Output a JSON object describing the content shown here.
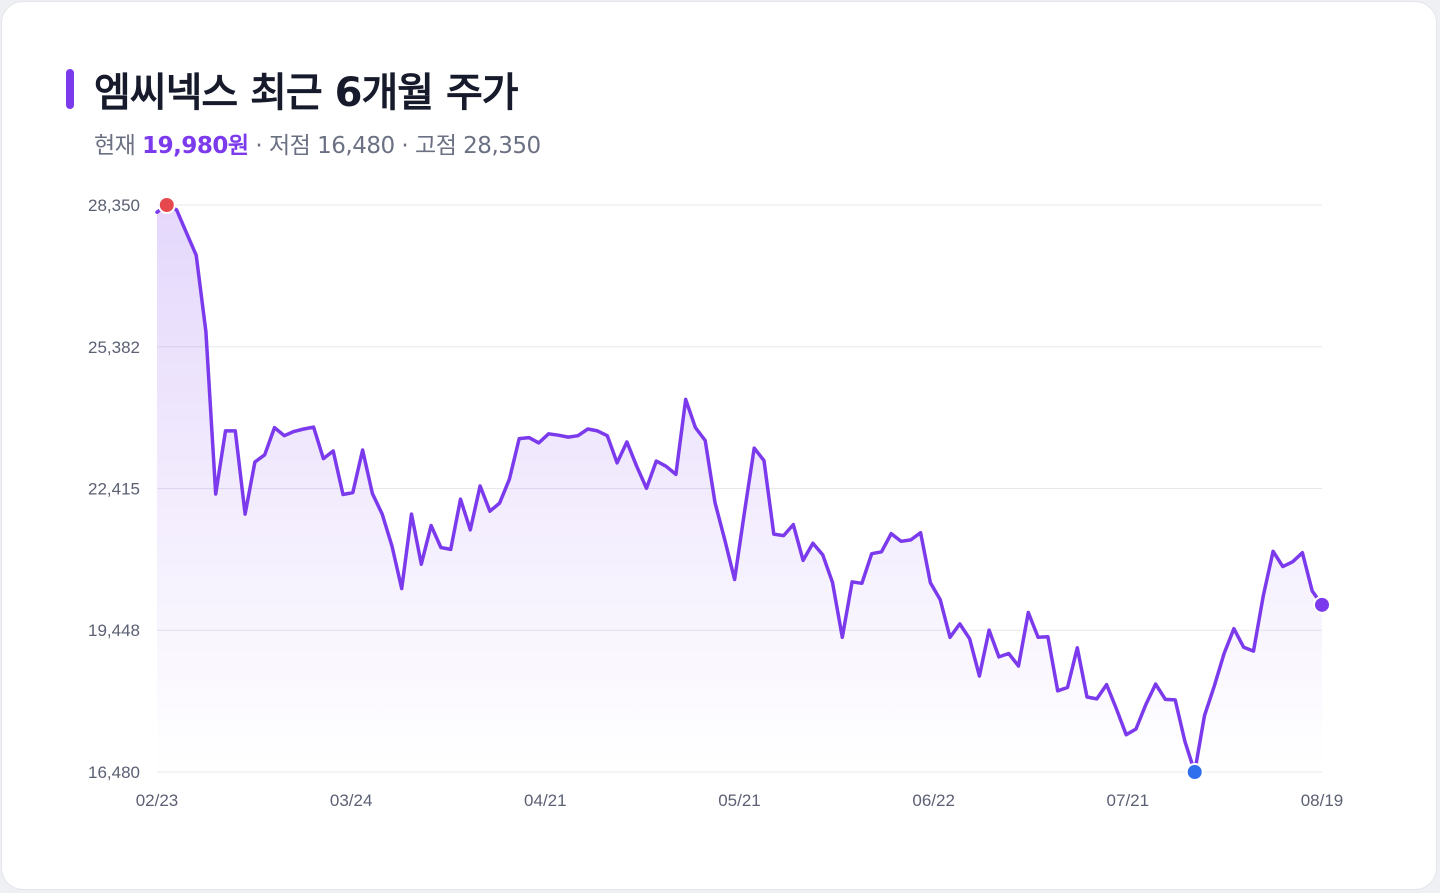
{
  "colors": {
    "line": "#7c3aed",
    "high_dot": "#e5484d",
    "low_dot": "#2f6fed",
    "last_dot": "#7c3aed",
    "grid": "#e7e8ee",
    "title_bar": "#7c3aed"
  },
  "header": {
    "title": "엠씨넥스 최근 6개월 주가",
    "current_label": "현재",
    "current_value": "19,980원",
    "low_text": "· 저점 16,480",
    "high_text": "· 고점 28,350"
  },
  "chart_data": {
    "type": "area",
    "title": "엠씨넥스 최근 6개월 주가",
    "xlabel": "",
    "ylabel": "",
    "ylim": [
      16480,
      28350
    ],
    "y_ticks": [
      {
        "value": 28350,
        "label": "28,350"
      },
      {
        "value": 25382,
        "label": "25,382"
      },
      {
        "value": 22415,
        "label": "22,415"
      },
      {
        "value": 19448,
        "label": "19,448"
      },
      {
        "value": 16480,
        "label": "16,480"
      }
    ],
    "x_tick_labels": [
      {
        "index": 0,
        "label": "02/23"
      },
      {
        "index": 20,
        "label": "03/24"
      },
      {
        "index": 40,
        "label": "04/21"
      },
      {
        "index": 60,
        "label": "05/21"
      },
      {
        "index": 80,
        "label": "06/22"
      },
      {
        "index": 100,
        "label": "07/21"
      },
      {
        "index": 120,
        "label": "08/19"
      }
    ],
    "grid": true,
    "series": [
      {
        "values": [
          28200,
          28350,
          28250,
          27770,
          27300,
          25700,
          22300,
          23620,
          23620,
          21880,
          22970,
          23120,
          23690,
          23520,
          23610,
          23660,
          23700,
          23040,
          23200,
          22290,
          22330,
          23220,
          22310,
          21880,
          21210,
          20320,
          21880,
          20830,
          21640,
          21180,
          21140,
          22190,
          21550,
          22470,
          21940,
          22110,
          22610,
          23460,
          23480,
          23370,
          23560,
          23530,
          23490,
          23520,
          23660,
          23620,
          23520,
          22950,
          23390,
          22880,
          22420,
          22990,
          22880,
          22710,
          24280,
          23690,
          23420,
          22120,
          21340,
          20510,
          21910,
          23260,
          23000,
          21460,
          21430,
          21660,
          20910,
          21270,
          21030,
          20450,
          19300,
          20460,
          20430,
          21050,
          21090,
          21470,
          21310,
          21340,
          21490,
          20440,
          20090,
          19300,
          19580,
          19270,
          18490,
          19450,
          18890,
          18960,
          18700,
          19820,
          19300,
          19310,
          18180,
          18250,
          19080,
          18050,
          18010,
          18310,
          17800,
          17260,
          17380,
          17890,
          18320,
          18000,
          17990,
          17120,
          16480,
          17660,
          18280,
          18960,
          19480,
          19090,
          19010,
          20170,
          21100,
          20780,
          20880,
          21070,
          20270,
          19980
        ]
      }
    ],
    "markers": {
      "high": {
        "index": 1,
        "value": 28350
      },
      "low": {
        "index": 106,
        "value": 16480
      },
      "last": {
        "index": 119,
        "value": 19980
      }
    }
  }
}
